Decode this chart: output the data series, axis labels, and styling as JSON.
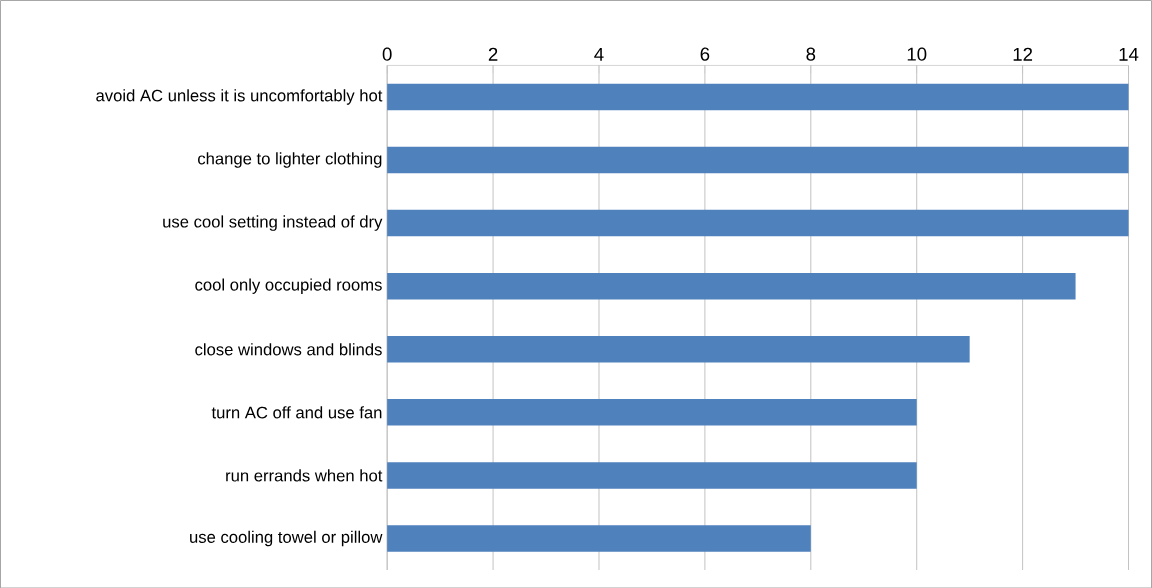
{
  "chart_data": {
    "type": "bar",
    "orientation": "horizontal",
    "categories": [
      "avoid AC unless it is uncomfortably hot",
      "change to lighter clothing",
      "use cool setting instead of dry",
      "cool only occupied rooms",
      "close windows and blinds",
      "turn AC off and use fan",
      "run errands when hot",
      "use cooling towel or pillow"
    ],
    "values": [
      14,
      14,
      14,
      13,
      11,
      10,
      10,
      8
    ],
    "color": "#4f81bd",
    "xlim": [
      0,
      14
    ],
    "xticks": [
      0,
      2,
      4,
      6,
      8,
      10,
      12,
      14
    ],
    "grid": "x"
  }
}
